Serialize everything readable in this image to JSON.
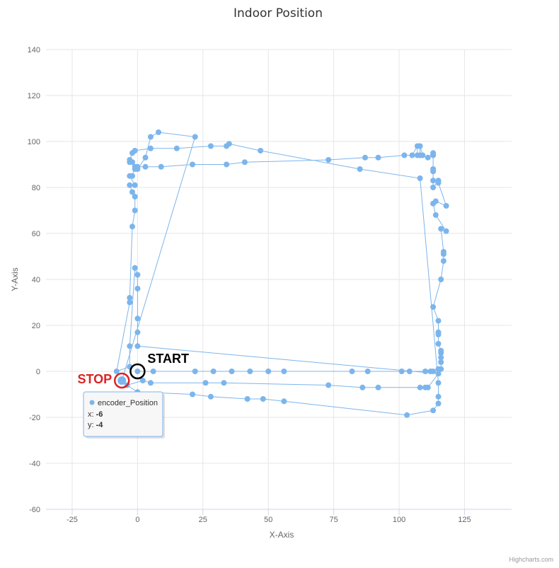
{
  "chart_data": {
    "type": "scatter",
    "title": "Indoor Position",
    "xlabel": "X-Axis",
    "ylabel": "Y-Axis",
    "xlim": [
      -35,
      143
    ],
    "ylim": [
      -60,
      140
    ],
    "xticks": [
      -25,
      0,
      25,
      50,
      75,
      100,
      125
    ],
    "yticks": [
      -60,
      -40,
      -20,
      0,
      20,
      40,
      60,
      80,
      100,
      120,
      140
    ],
    "grid": true,
    "series": [
      {
        "name": "encoder_Position",
        "color": "#7cb5ec",
        "line": true,
        "points": [
          [
            0,
            0
          ],
          [
            6,
            0
          ],
          [
            22,
            0
          ],
          [
            29,
            0
          ],
          [
            36,
            0
          ],
          [
            43,
            0
          ],
          [
            50,
            0
          ],
          [
            56,
            0
          ],
          [
            82,
            0
          ],
          [
            88,
            0
          ],
          [
            101,
            0
          ],
          [
            104,
            0
          ],
          [
            110,
            0
          ],
          [
            112,
            0
          ],
          [
            113,
            0
          ],
          [
            115,
            1
          ],
          [
            116,
            1
          ],
          [
            116,
            4
          ],
          [
            116,
            6
          ],
          [
            116,
            8
          ],
          [
            116,
            9
          ],
          [
            115,
            12
          ],
          [
            115,
            16
          ],
          [
            115,
            17
          ],
          [
            115,
            22
          ],
          [
            113,
            28
          ],
          [
            116,
            40
          ],
          [
            117,
            48
          ],
          [
            117,
            51
          ],
          [
            117,
            52
          ],
          [
            116,
            62
          ],
          [
            118,
            61
          ],
          [
            114,
            68
          ],
          [
            113,
            73
          ],
          [
            114,
            74
          ],
          [
            118,
            72
          ],
          [
            115,
            82
          ],
          [
            113,
            83
          ],
          [
            115,
            83
          ],
          [
            113,
            80
          ],
          [
            113,
            87
          ],
          [
            113,
            88
          ],
          [
            113,
            94
          ],
          [
            113,
            95
          ],
          [
            111,
            93
          ],
          [
            109,
            94
          ],
          [
            108,
            98
          ],
          [
            108,
            94
          ],
          [
            107,
            94
          ],
          [
            107,
            98
          ],
          [
            105,
            94
          ],
          [
            102,
            94
          ],
          [
            92,
            93
          ],
          [
            87,
            93
          ],
          [
            73,
            92
          ],
          [
            41,
            91
          ],
          [
            34,
            90
          ],
          [
            21,
            90
          ],
          [
            9,
            89
          ],
          [
            3,
            89
          ],
          [
            0,
            89
          ],
          [
            -1,
            88
          ],
          [
            -2,
            91
          ],
          [
            -3,
            91
          ],
          [
            -3,
            92
          ],
          [
            -2,
            95
          ],
          [
            -1,
            96
          ],
          [
            5,
            97
          ],
          [
            15,
            97
          ],
          [
            28,
            98
          ],
          [
            34,
            98
          ],
          [
            35,
            99
          ],
          [
            47,
            96
          ],
          [
            85,
            88
          ],
          [
            108,
            84
          ],
          [
            115,
            -5
          ],
          [
            115,
            -11
          ],
          [
            115,
            -14
          ],
          [
            113,
            -17
          ],
          [
            103,
            -19
          ],
          [
            56,
            -13
          ],
          [
            48,
            -12
          ],
          [
            42,
            -12
          ],
          [
            28,
            -11
          ],
          [
            21,
            -10
          ],
          [
            0,
            -9
          ],
          [
            -4,
            -6
          ],
          [
            2,
            -4
          ],
          [
            5,
            -5
          ],
          [
            26,
            -5
          ],
          [
            33,
            -5
          ],
          [
            73,
            -6
          ],
          [
            86,
            -7
          ],
          [
            92,
            -7
          ],
          [
            108,
            -7
          ],
          [
            110,
            -7
          ],
          [
            111,
            -7
          ],
          [
            115,
            -1
          ],
          [
            0,
            11
          ],
          [
            0,
            17
          ],
          [
            0,
            23
          ],
          [
            0,
            36
          ],
          [
            0,
            42
          ],
          [
            -1,
            45
          ],
          [
            -3,
            11
          ],
          [
            -3,
            2
          ],
          [
            -8,
            0
          ],
          [
            -3,
            30
          ],
          [
            -3,
            32
          ],
          [
            -2,
            63
          ],
          [
            -1,
            70
          ],
          [
            -1,
            76
          ],
          [
            -2,
            78
          ],
          [
            -3,
            81
          ],
          [
            -1,
            81
          ],
          [
            -3,
            85
          ],
          [
            -2,
            85
          ],
          [
            -1,
            89
          ],
          [
            0,
            88
          ],
          [
            3,
            93
          ],
          [
            5,
            102
          ],
          [
            8,
            104
          ],
          [
            22,
            102
          ],
          [
            -6,
            -4
          ]
        ]
      }
    ],
    "annotations": [
      {
        "text": "START",
        "x": 0,
        "y": 0,
        "color": "#000000"
      },
      {
        "text": "STOP",
        "x": -6,
        "y": -4,
        "color": "#dd2222"
      }
    ],
    "tooltip": {
      "series_name": "encoder_Position",
      "x_label": "x:",
      "x_value": "-6",
      "y_label": "y:",
      "y_value": "-4"
    },
    "credits": "Highcharts.com"
  }
}
